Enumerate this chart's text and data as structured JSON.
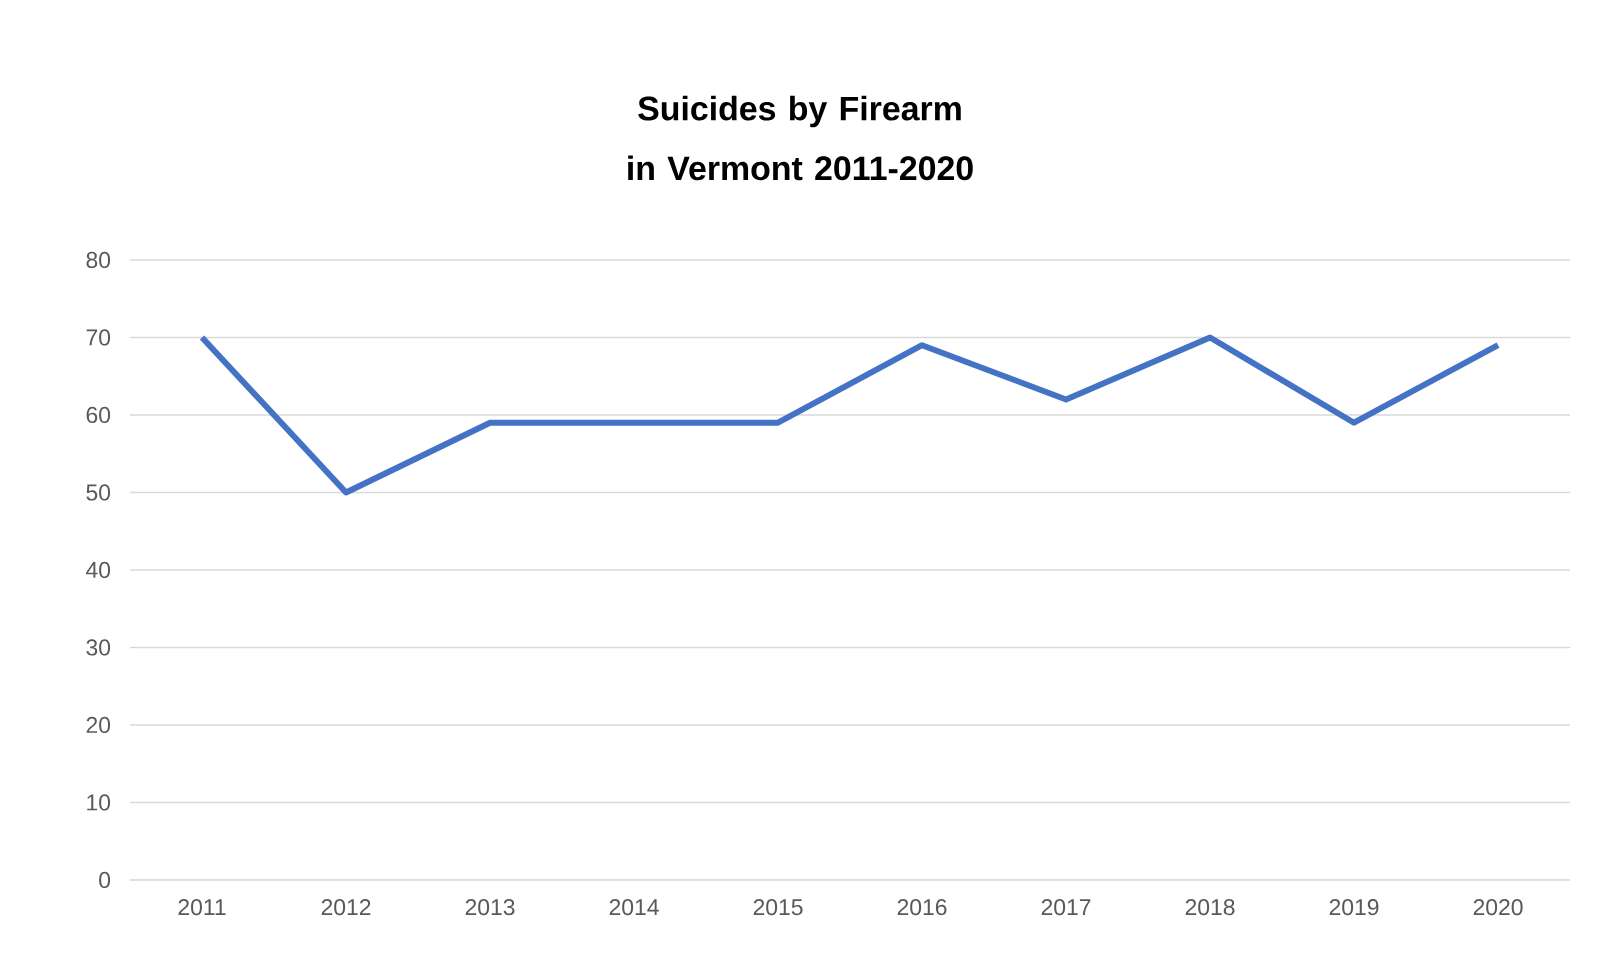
{
  "chart_data": {
    "type": "line",
    "title": "Suicides by Firearm in Vermont 2011-2020",
    "categories": [
      "2011",
      "2012",
      "2013",
      "2014",
      "2015",
      "2016",
      "2017",
      "2018",
      "2019",
      "2020"
    ],
    "values": [
      70,
      50,
      59,
      59,
      59,
      69,
      62,
      70,
      59,
      69
    ],
    "color": "#4472c4",
    "ylim": [
      0,
      80
    ],
    "yticks": [
      0,
      10,
      20,
      30,
      40,
      50,
      60,
      70,
      80
    ],
    "grid": "y",
    "marker": "none",
    "line_style": "solid"
  }
}
